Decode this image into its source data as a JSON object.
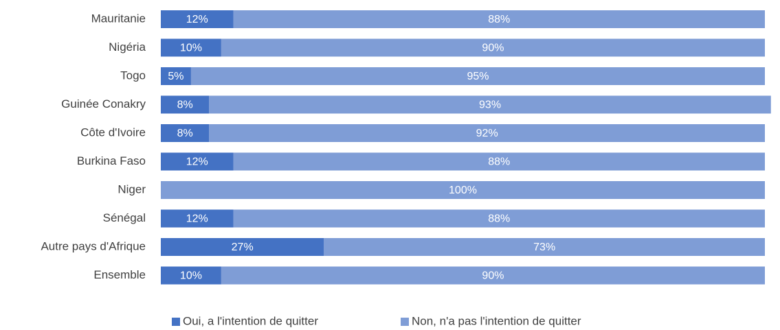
{
  "chart_data": {
    "type": "stacked-barh",
    "categories": [
      "Mauritanie",
      "Nigéria",
      "Togo",
      "Guinée Conakry",
      "Côte d'Ivoire",
      "Burkina Faso",
      "Niger",
      "Sénégal",
      "Autre pays d'Afrique",
      "Ensemble"
    ],
    "series": [
      {
        "name": "Oui, a l'intention de quitter",
        "color": "#4472c4",
        "values": [
          12,
          10,
          5,
          8,
          8,
          12,
          0,
          12,
          27,
          10
        ],
        "value_labels": [
          "12%",
          "10%",
          "5%",
          "8%",
          "8%",
          "12%",
          null,
          "12%",
          "27%",
          "10%"
        ]
      },
      {
        "name": "Non, n'a pas l'intention de quitter",
        "color": "#7f9dd6",
        "values": [
          88,
          90,
          95,
          93,
          92,
          88,
          100,
          88,
          73,
          90
        ],
        "value_labels": [
          "88%",
          "90%",
          "95%",
          "93%",
          "92%",
          "88%",
          "100%",
          "88%",
          "73%",
          "90%"
        ]
      }
    ],
    "xlim": [
      0,
      100
    ],
    "legend": "bottom"
  }
}
